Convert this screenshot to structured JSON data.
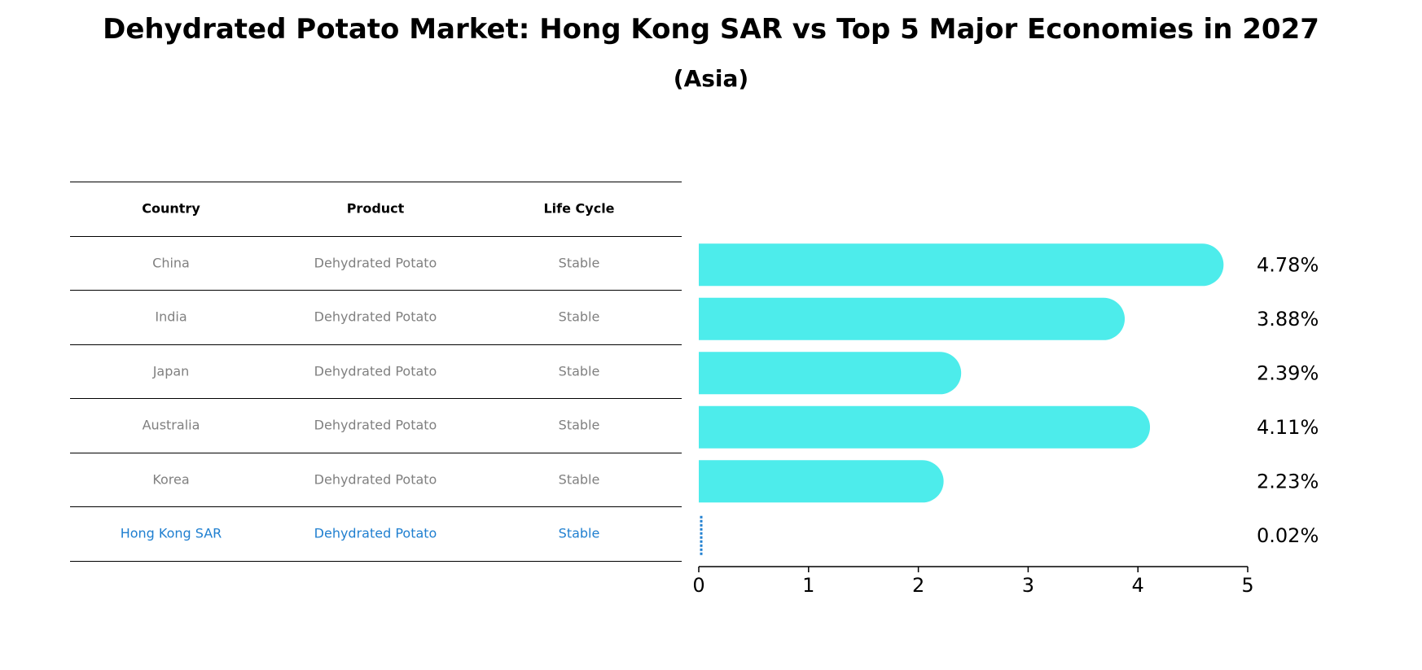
{
  "title": "Dehydrated Potato Market: Hong Kong SAR vs Top 5 Major Economies in 2027",
  "subtitle": "(Asia)",
  "table": {
    "headers": [
      "Country",
      "Product",
      "Life Cycle"
    ],
    "rows": [
      [
        "China",
        "Dehydrated Potato",
        "Stable"
      ],
      [
        "India",
        "Dehydrated Potato",
        "Stable"
      ],
      [
        "Japan",
        "Dehydrated Potato",
        "Stable"
      ],
      [
        "Australia",
        "Dehydrated Potato",
        "Stable"
      ],
      [
        "Korea",
        "Dehydrated Potato",
        "Stable"
      ],
      [
        "Hong Kong SAR",
        "Dehydrated Potato",
        "Stable"
      ]
    ],
    "highlight_row": 5
  },
  "colors": {
    "bar": "#4deceb",
    "highlight": "#1f7fd0",
    "text_muted": "#808080"
  },
  "chart_data": {
    "type": "bar",
    "orientation": "horizontal",
    "categories": [
      "China",
      "India",
      "Japan",
      "Australia",
      "Korea",
      "Hong Kong SAR"
    ],
    "values": [
      4.78,
      3.88,
      2.39,
      4.11,
      2.23,
      0.02
    ],
    "value_labels": [
      "4.78%",
      "3.88%",
      "2.39%",
      "4.11%",
      "2.23%",
      "0.02%"
    ],
    "xlim": [
      0,
      5
    ],
    "xticks": [
      0,
      1,
      2,
      3,
      4,
      5
    ],
    "grid": false
  }
}
